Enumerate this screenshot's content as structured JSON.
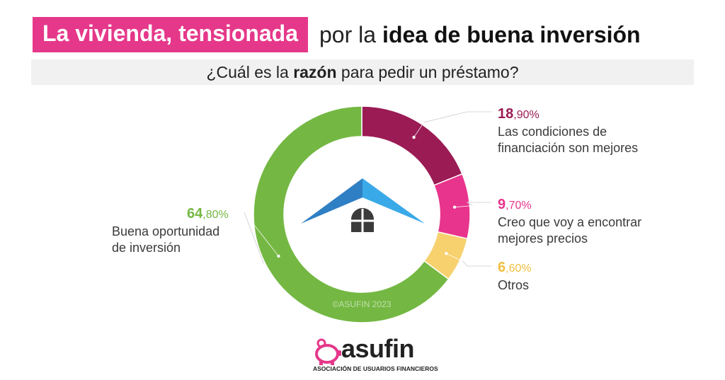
{
  "header": {
    "title_highlight": "La vivienda, tensionada",
    "title_middle": "por la",
    "title_bold": "idea de buena inversión"
  },
  "question": {
    "pre": "¿Cuál es la ",
    "bold": "razón",
    "post": " para pedir un préstamo?"
  },
  "chart_data": {
    "type": "pie",
    "donut": true,
    "start_angle_deg": 0,
    "direction": "clockwise",
    "slices": [
      {
        "label": "Las condiciones de financiación son mejores",
        "value": 18.9,
        "display_int": "18",
        "display_dec": ",90%",
        "color": "#9b1b55"
      },
      {
        "label": "Creo que voy a encontrar mejores precios",
        "value": 9.7,
        "display_int": "9",
        "display_dec": ",70%",
        "color": "#e8348c"
      },
      {
        "label": "Otros",
        "value": 6.6,
        "display_int": "6",
        "display_dec": ",60%",
        "color": "#f6d16e"
      },
      {
        "label": "Buena oportunidad de inversión",
        "value": 64.8,
        "display_int": "64",
        "display_dec": ",80%",
        "color": "#74b843"
      }
    ],
    "watermark": "©ASUFIN 2023",
    "center_icon": "house-roof-window-icon"
  },
  "labels": {
    "s0_line1": "Las condiciones de",
    "s0_line2": "financiación son mejores",
    "s1_line1": "Creo que voy a encontrar",
    "s1_line2": "mejores precios",
    "s2_line1": "Otros",
    "s3_line1": "Buena oportunidad",
    "s3_line2": "de inversión"
  },
  "logo": {
    "name": "asufin",
    "subtitle": "ASOCIACIÓN DE USUARIOS FINANCIEROS",
    "icon": "piggy-bank-icon",
    "color": "#e5388a"
  }
}
